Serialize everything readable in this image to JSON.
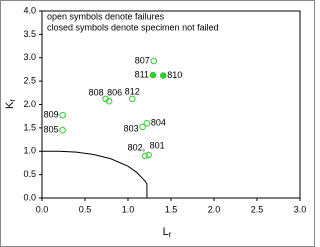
{
  "chart_data": {
    "type": "scatter",
    "annotations": [
      "open symbols denote failures",
      "closed symbols denote specimen not failed"
    ],
    "xlabel": {
      "main": "L",
      "sub": "r"
    },
    "ylabel": {
      "main": "K",
      "sub": "r"
    },
    "xlim": [
      0,
      3
    ],
    "ylim": [
      0,
      4
    ],
    "xticks": [
      {
        "value": 0,
        "label": "0.0"
      },
      {
        "value": 0.5,
        "label": "0.5"
      },
      {
        "value": 1,
        "label": "1.0"
      },
      {
        "value": 1.5,
        "label": "1.5"
      },
      {
        "value": 2,
        "label": "2.0"
      },
      {
        "value": 2.5,
        "label": "2.5"
      },
      {
        "value": 3,
        "label": "3.0"
      }
    ],
    "yticks": [
      {
        "value": 0,
        "label": "0.0"
      },
      {
        "value": 0.5,
        "label": "0.5"
      },
      {
        "value": 1,
        "label": "1.0"
      },
      {
        "value": 1.5,
        "label": "1.5"
      },
      {
        "value": 2,
        "label": "2.0"
      },
      {
        "value": 2.5,
        "label": "2.5"
      },
      {
        "value": 3,
        "label": "3.0"
      },
      {
        "value": 3.5,
        "label": "3.5"
      },
      {
        "value": 4,
        "label": "4.0"
      }
    ],
    "marker_color": "#33cc33",
    "curve": {
      "color": "#000000",
      "x": [
        0,
        0.2,
        0.4,
        0.6,
        0.8,
        1.0,
        1.1,
        1.2,
        1.22,
        1.22
      ],
      "y": [
        1.0,
        1.0,
        0.98,
        0.93,
        0.84,
        0.68,
        0.55,
        0.36,
        0.3,
        0
      ]
    },
    "points": [
      {
        "label": "807",
        "x": 1.3,
        "y": 2.93,
        "filled": false
      },
      {
        "label": "811",
        "x": 1.29,
        "y": 2.63,
        "filled": true
      },
      {
        "label": "810",
        "x": 1.41,
        "y": 2.62,
        "filled": true
      },
      {
        "label": "808",
        "x": 0.74,
        "y": 2.12,
        "filled": false
      },
      {
        "label": "806",
        "x": 0.78,
        "y": 2.07,
        "filled": false
      },
      {
        "label": "812",
        "x": 1.05,
        "y": 2.12,
        "filled": false
      },
      {
        "label": "809",
        "x": 0.24,
        "y": 1.77,
        "filled": false
      },
      {
        "label": "805",
        "x": 0.24,
        "y": 1.45,
        "filled": false
      },
      {
        "label": "803",
        "x": 1.17,
        "y": 1.52,
        "filled": false
      },
      {
        "label": "804",
        "x": 1.22,
        "y": 1.6,
        "filled": false
      },
      {
        "label": "802,",
        "x": 1.2,
        "y": 0.9,
        "filled": false
      },
      {
        "label": "801",
        "x": 1.24,
        "y": 0.92,
        "filled": false
      }
    ]
  }
}
